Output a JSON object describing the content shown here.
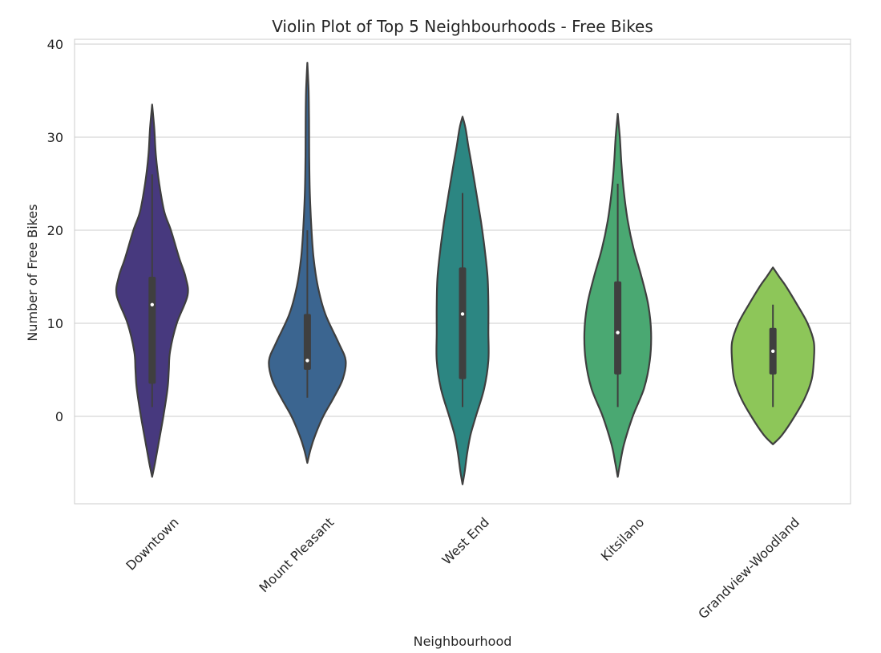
{
  "chart_data": {
    "type": "violin",
    "title": "Violin Plot of Top 5 Neighbourhoods - Free Bikes",
    "xlabel": "Neighbourhood",
    "ylabel": "Number of Free Bikes",
    "ylim": [
      -9.5,
      40.5
    ],
    "yticks": [
      0,
      10,
      20,
      30,
      40
    ],
    "grid": true,
    "categories": [
      "Downtown",
      "Mount Pleasant",
      "West End",
      "Kitsilano",
      "Grandview-Woodland"
    ],
    "colors": [
      "#47397e",
      "#3b6590",
      "#2c8682",
      "#4aa872",
      "#8dc659"
    ],
    "series": [
      {
        "category": "Downtown",
        "median": 12,
        "q1": 3.5,
        "q3": 15,
        "whisker_low": 1,
        "whisker_high": 26,
        "kde_range": [
          -6.5,
          33.5
        ],
        "profile": [
          [
            -6.5,
            0
          ],
          [
            -5,
            0.07
          ],
          [
            -3,
            0.15
          ],
          [
            0,
            0.27
          ],
          [
            3,
            0.37
          ],
          [
            5,
            0.4
          ],
          [
            7,
            0.43
          ],
          [
            10,
            0.59
          ],
          [
            13,
            0.85
          ],
          [
            15,
            0.8
          ],
          [
            17,
            0.65
          ],
          [
            20,
            0.45
          ],
          [
            22,
            0.29
          ],
          [
            25,
            0.17
          ],
          [
            28,
            0.09
          ],
          [
            31,
            0.05
          ],
          [
            33.5,
            0
          ]
        ]
      },
      {
        "category": "Mount Pleasant",
        "median": 6,
        "q1": 5,
        "q3": 11,
        "whisker_low": 2,
        "whisker_high": 20,
        "kde_range": [
          -5,
          38
        ],
        "profile": [
          [
            -5,
            0
          ],
          [
            -3.5,
            0.08
          ],
          [
            -2,
            0.19
          ],
          [
            0,
            0.38
          ],
          [
            2,
            0.63
          ],
          [
            4,
            0.85
          ],
          [
            6,
            0.92
          ],
          [
            8,
            0.74
          ],
          [
            11,
            0.43
          ],
          [
            14,
            0.25
          ],
          [
            17,
            0.15
          ],
          [
            20,
            0.1
          ],
          [
            24,
            0.06
          ],
          [
            28,
            0.045
          ],
          [
            32,
            0.04
          ],
          [
            35,
            0.03
          ],
          [
            38,
            0
          ]
        ]
      },
      {
        "category": "West End",
        "median": 11,
        "q1": 4,
        "q3": 16,
        "whisker_low": 1,
        "whisker_high": 24,
        "kde_range": [
          -7.3,
          32.2
        ],
        "profile": [
          [
            -7.3,
            0
          ],
          [
            -6,
            0.05
          ],
          [
            -4,
            0.11
          ],
          [
            -2,
            0.19
          ],
          [
            0,
            0.32
          ],
          [
            3,
            0.52
          ],
          [
            6,
            0.62
          ],
          [
            9,
            0.62
          ],
          [
            12,
            0.62
          ],
          [
            15,
            0.6
          ],
          [
            18,
            0.53
          ],
          [
            21,
            0.44
          ],
          [
            24,
            0.33
          ],
          [
            27,
            0.22
          ],
          [
            29,
            0.14
          ],
          [
            31,
            0.07
          ],
          [
            32.2,
            0
          ]
        ]
      },
      {
        "category": "Kitsilano",
        "median": 9,
        "q1": 4.5,
        "q3": 14.5,
        "whisker_low": 1,
        "whisker_high": 25,
        "kde_range": [
          -6.5,
          32.5
        ],
        "profile": [
          [
            -6.5,
            0
          ],
          [
            -5,
            0.06
          ],
          [
            -3,
            0.15
          ],
          [
            0,
            0.36
          ],
          [
            3,
            0.63
          ],
          [
            6,
            0.77
          ],
          [
            9,
            0.8
          ],
          [
            12,
            0.73
          ],
          [
            15,
            0.57
          ],
          [
            18,
            0.38
          ],
          [
            21,
            0.24
          ],
          [
            24,
            0.15
          ],
          [
            27,
            0.09
          ],
          [
            30,
            0.05
          ],
          [
            32.5,
            0
          ]
        ]
      },
      {
        "category": "Grandview-Woodland",
        "median": 7,
        "q1": 4.5,
        "q3": 9.5,
        "whisker_low": 1,
        "whisker_high": 12,
        "kde_range": [
          -3,
          16
        ],
        "profile": [
          [
            -3,
            0
          ],
          [
            -2,
            0.22
          ],
          [
            0,
            0.52
          ],
          [
            2,
            0.77
          ],
          [
            4,
            0.93
          ],
          [
            6,
            0.98
          ],
          [
            8,
            0.98
          ],
          [
            10,
            0.83
          ],
          [
            12,
            0.58
          ],
          [
            14,
            0.31
          ],
          [
            15,
            0.15
          ],
          [
            16,
            0
          ]
        ]
      }
    ]
  }
}
